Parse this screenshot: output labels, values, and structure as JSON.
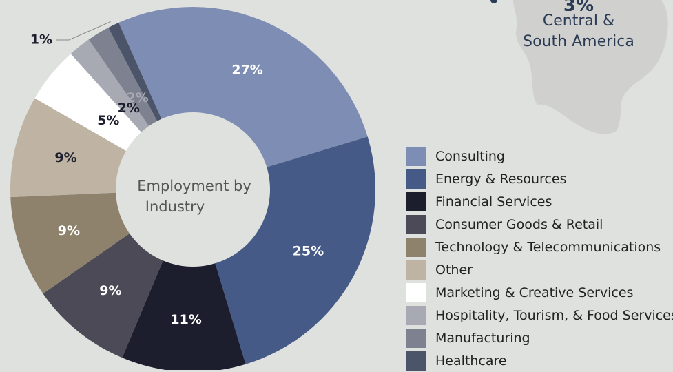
{
  "region": {
    "percent": "3%",
    "name_line1": "Central &",
    "name_line2": "South America"
  },
  "chart_data": {
    "type": "pie",
    "title": "Employment by Industry",
    "title_line1": "Employment by",
    "title_line2": "Industry",
    "categories": [
      "Consulting",
      "Energy & Resources",
      "Financial Services",
      "Consumer Goods & Retail",
      "Technology & Telecommunications",
      "Other",
      "Marketing & Creative Services",
      "Hospitality, Tourism, & Food Services",
      "Manufacturing",
      "Healthcare"
    ],
    "values": [
      27,
      25,
      11,
      9,
      9,
      9,
      5,
      2,
      2,
      1
    ],
    "labels": [
      "27%",
      "25%",
      "11%",
      "9%",
      "9%",
      "9%",
      "5%",
      "2%",
      "2%",
      "1%"
    ],
    "colors": [
      "#7e8db3",
      "#465a87",
      "#1c1d2d",
      "#4c4a57",
      "#8e826c",
      "#bfb4a4",
      "#ffffff",
      "#a8aab3",
      "#7e8290",
      "#4b5469"
    ],
    "label_colors": [
      "#ffffff",
      "#ffffff",
      "#ffffff",
      "#ffffff",
      "#ffffff",
      "#1c1d2d",
      "#1c1d2d",
      "#1c1d2d",
      "#a8aab3",
      "#1c1d2d"
    ],
    "legend_position": "right"
  }
}
